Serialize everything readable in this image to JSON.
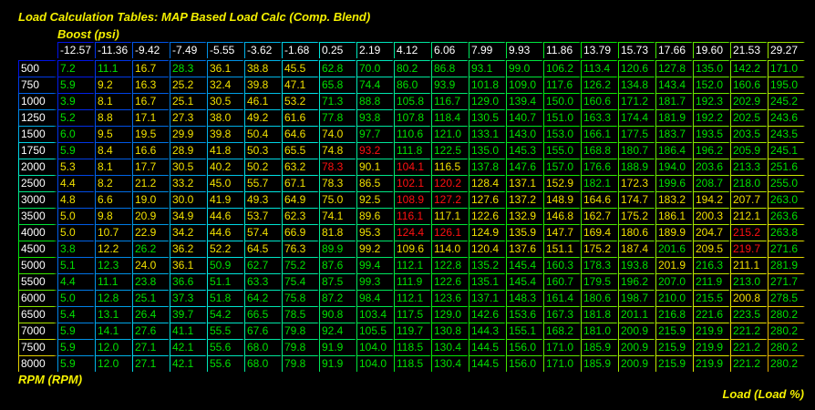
{
  "title": "Load Calculation Tables: MAP Based Load Calc (Comp. Blend)",
  "x_axis_label": "Boost (psi)",
  "y_axis_label": "RPM (RPM)",
  "value_label": "Load (Load %)",
  "colors": {
    "background": "#000000",
    "g": "#00e000",
    "y": "#f0e000",
    "r": "#ff1010",
    "header_text": "#ffffff",
    "title": "#f4f000"
  },
  "columns": [
    "-12.57",
    "-11.36",
    "-9.42",
    "-7.49",
    "-5.55",
    "-3.62",
    "-1.68",
    "0.25",
    "2.19",
    "4.12",
    "6.06",
    "7.99",
    "9.93",
    "11.86",
    "13.79",
    "15.73",
    "17.66",
    "19.60",
    "21.53",
    "29.27"
  ],
  "rows": [
    {
      "rpm": "500",
      "c": "ggygyyyggggggggggggg",
      "v": [
        "7.2",
        "11.1",
        "16.7",
        "28.3",
        "36.1",
        "38.8",
        "45.5",
        "62.8",
        "70.0",
        "80.2",
        "86.8",
        "93.1",
        "99.0",
        "106.2",
        "113.4",
        "120.6",
        "127.8",
        "135.0",
        "142.2",
        "171.0"
      ]
    },
    {
      "rpm": "750",
      "c": "gyyyyyyggggggggggggg",
      "v": [
        "5.9",
        "9.2",
        "16.3",
        "25.2",
        "32.4",
        "39.8",
        "47.1",
        "65.8",
        "74.4",
        "86.0",
        "93.9",
        "101.8",
        "109.0",
        "117.6",
        "126.2",
        "134.8",
        "143.4",
        "152.0",
        "160.6",
        "195.0"
      ]
    },
    {
      "rpm": "1000",
      "c": "gyyyyyyggggggggggggg",
      "v": [
        "3.9",
        "8.1",
        "16.7",
        "25.1",
        "30.5",
        "46.1",
        "53.2",
        "71.3",
        "88.8",
        "105.8",
        "116.7",
        "129.0",
        "139.4",
        "150.0",
        "160.6",
        "171.2",
        "181.7",
        "192.3",
        "202.9",
        "245.2"
      ]
    },
    {
      "rpm": "1250",
      "c": "gyyyyyyggggggggggggg",
      "v": [
        "5.2",
        "8.8",
        "17.1",
        "27.3",
        "38.0",
        "49.2",
        "61.6",
        "77.8",
        "93.8",
        "107.8",
        "118.4",
        "130.5",
        "140.7",
        "151.0",
        "163.3",
        "174.4",
        "181.9",
        "192.2",
        "202.5",
        "243.6"
      ]
    },
    {
      "rpm": "1500",
      "c": "gyyyyyyygggggggggggg",
      "v": [
        "6.0",
        "9.5",
        "19.5",
        "29.9",
        "39.8",
        "50.4",
        "64.6",
        "74.0",
        "97.7",
        "110.6",
        "121.0",
        "133.1",
        "143.0",
        "153.0",
        "166.1",
        "177.5",
        "183.7",
        "193.5",
        "203.5",
        "243.5"
      ]
    },
    {
      "rpm": "1750",
      "c": "gyyyyyyyrggggggggggg",
      "v": [
        "5.9",
        "8.4",
        "16.6",
        "28.9",
        "41.8",
        "50.3",
        "65.5",
        "74.8",
        "93.2",
        "111.8",
        "122.5",
        "135.0",
        "145.3",
        "155.0",
        "168.8",
        "180.7",
        "186.4",
        "196.2",
        "205.9",
        "245.1"
      ]
    },
    {
      "rpm": "2000",
      "c": "yyyyyyyryryggggggggg",
      "v": [
        "5.3",
        "8.1",
        "17.7",
        "30.5",
        "40.2",
        "50.2",
        "63.2",
        "78.3",
        "90.1",
        "104.1",
        "116.5",
        "137.8",
        "147.6",
        "157.0",
        "176.6",
        "188.9",
        "194.0",
        "203.6",
        "213.3",
        "251.6"
      ]
    },
    {
      "rpm": "2500",
      "c": "yyyyyyyyyrryyygygggg",
      "v": [
        "4.4",
        "8.2",
        "21.2",
        "33.2",
        "45.0",
        "55.7",
        "67.1",
        "78.3",
        "86.5",
        "102.1",
        "120.2",
        "128.4",
        "137.1",
        "152.9",
        "182.1",
        "172.3",
        "199.6",
        "208.7",
        "218.0",
        "255.0"
      ]
    },
    {
      "rpm": "3000",
      "c": "yyyyyyyyyrryyyyyyyyg",
      "v": [
        "4.8",
        "6.6",
        "19.0",
        "30.0",
        "41.9",
        "49.3",
        "64.9",
        "75.0",
        "92.5",
        "108.9",
        "127.2",
        "127.6",
        "137.2",
        "148.9",
        "164.6",
        "174.7",
        "183.2",
        "194.2",
        "207.7",
        "263.0"
      ]
    },
    {
      "rpm": "3500",
      "c": "yyyyyyyyyryyyyyyyyyg",
      "v": [
        "5.0",
        "9.8",
        "20.9",
        "34.9",
        "44.6",
        "53.7",
        "62.3",
        "74.1",
        "89.6",
        "116.1",
        "117.1",
        "122.6",
        "132.9",
        "146.8",
        "162.7",
        "175.2",
        "186.1",
        "200.3",
        "212.1",
        "263.6"
      ]
    },
    {
      "rpm": "4000",
      "c": "yyyyyyyyyrryyyyyyyrg",
      "v": [
        "5.0",
        "10.7",
        "22.9",
        "34.2",
        "44.6",
        "57.4",
        "66.9",
        "81.8",
        "95.3",
        "124.4",
        "126.1",
        "124.9",
        "135.9",
        "147.7",
        "169.4",
        "180.6",
        "189.9",
        "204.7",
        "215.2",
        "263.8"
      ]
    },
    {
      "rpm": "4500",
      "c": "gygyyyygyyyyyyyygyrg",
      "v": [
        "3.8",
        "12.2",
        "26.2",
        "36.2",
        "52.2",
        "64.5",
        "76.3",
        "89.9",
        "99.2",
        "109.6",
        "114.0",
        "120.4",
        "137.6",
        "151.1",
        "175.2",
        "187.4",
        "201.6",
        "209.5",
        "219.7",
        "271.6"
      ]
    },
    {
      "rpm": "5000",
      "c": "ggyyggggggggggggygyg",
      "v": [
        "5.1",
        "12.3",
        "24.0",
        "36.1",
        "50.9",
        "62.7",
        "75.2",
        "87.6",
        "99.4",
        "112.1",
        "122.8",
        "135.2",
        "145.4",
        "160.3",
        "178.3",
        "193.8",
        "201.9",
        "216.3",
        "211.1",
        "281.9"
      ]
    },
    {
      "rpm": "5500",
      "c": "gggggggggggggggggggg",
      "v": [
        "4.4",
        "11.1",
        "23.8",
        "36.6",
        "51.1",
        "63.3",
        "75.4",
        "87.5",
        "99.3",
        "111.9",
        "122.6",
        "135.1",
        "145.4",
        "160.7",
        "179.5",
        "196.2",
        "207.0",
        "211.9",
        "213.0",
        "271.7"
      ]
    },
    {
      "rpm": "6000",
      "c": "ggggggggggggggggggyg",
      "v": [
        "5.0",
        "12.8",
        "25.1",
        "37.3",
        "51.8",
        "64.2",
        "75.8",
        "87.2",
        "98.4",
        "112.1",
        "123.6",
        "137.1",
        "148.3",
        "161.4",
        "180.6",
        "198.7",
        "210.0",
        "215.5",
        "200.8",
        "278.5"
      ]
    },
    {
      "rpm": "6500",
      "c": "gggggggggggggggggggg",
      "v": [
        "5.4",
        "13.1",
        "26.4",
        "39.7",
        "54.2",
        "66.5",
        "78.5",
        "90.8",
        "103.4",
        "117.5",
        "129.0",
        "142.6",
        "153.6",
        "167.3",
        "181.8",
        "201.1",
        "216.8",
        "221.6",
        "223.5",
        "280.2"
      ]
    },
    {
      "rpm": "7000",
      "c": "gggggggggggggggggggg",
      "v": [
        "5.9",
        "14.1",
        "27.6",
        "41.1",
        "55.5",
        "67.6",
        "79.8",
        "92.4",
        "105.5",
        "119.7",
        "130.8",
        "144.3",
        "155.1",
        "168.2",
        "181.0",
        "200.9",
        "215.9",
        "219.9",
        "221.2",
        "280.2"
      ]
    },
    {
      "rpm": "7500",
      "c": "gggggggggggggggggggg",
      "v": [
        "5.9",
        "12.0",
        "27.1",
        "42.1",
        "55.6",
        "68.0",
        "79.8",
        "91.9",
        "104.0",
        "118.5",
        "130.4",
        "144.5",
        "156.0",
        "171.0",
        "185.9",
        "200.9",
        "215.9",
        "219.9",
        "221.2",
        "280.2"
      ]
    },
    {
      "rpm": "8000",
      "c": "gggggggggggggggggggg",
      "v": [
        "5.9",
        "12.0",
        "27.1",
        "42.1",
        "55.6",
        "68.0",
        "79.8",
        "91.9",
        "104.0",
        "118.5",
        "130.4",
        "144.5",
        "156.0",
        "171.0",
        "185.9",
        "200.9",
        "215.9",
        "219.9",
        "221.2",
        "280.2"
      ]
    }
  ]
}
